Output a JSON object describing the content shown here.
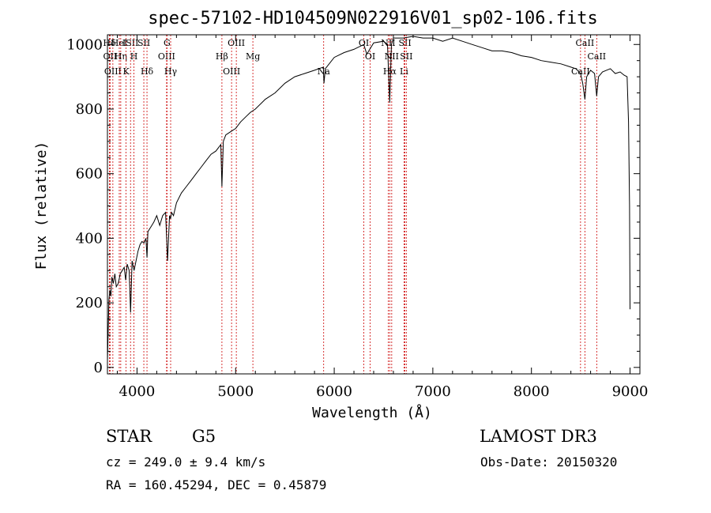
{
  "chart_data": {
    "type": "line",
    "title": "spec-57102-HD104509N022916V01_sp02-106.fits",
    "xlabel": "Wavelength (Å)",
    "ylabel": "Flux (relative)",
    "xlim": [
      3700,
      9100
    ],
    "ylim": [
      -20,
      1030
    ],
    "xticks": [
      4000,
      5000,
      6000,
      7000,
      8000,
      9000
    ],
    "yticks": [
      0,
      200,
      400,
      600,
      800,
      1000
    ],
    "grid": false,
    "series": [
      {
        "x": [
          3700,
          3705,
          3715,
          3725,
          3735,
          3745,
          3760,
          3775,
          3790,
          3810,
          3830,
          3850,
          3870,
          3885,
          3900,
          3920,
          3935,
          3950,
          3970,
          3990,
          4010,
          4030,
          4050,
          4070,
          4090,
          4101,
          4110,
          4130,
          4150,
          4170,
          4200,
          4230,
          4260,
          4290,
          4310,
          4330,
          4340,
          4350,
          4370,
          4400,
          4450,
          4500,
          4550,
          4600,
          4650,
          4700,
          4750,
          4800,
          4850,
          4861,
          4875,
          4900,
          4950,
          5000,
          5050,
          5100,
          5150,
          5200,
          5300,
          5400,
          5500,
          5600,
          5700,
          5800,
          5890,
          5896,
          5910,
          6000,
          6100,
          6200,
          6300,
          6330,
          6400,
          6500,
          6540,
          6563,
          6580,
          6600,
          6700,
          6800,
          6900,
          7000,
          7100,
          7200,
          7300,
          7400,
          7500,
          7600,
          7700,
          7800,
          7900,
          8000,
          8100,
          8200,
          8300,
          8400,
          8450,
          8498,
          8520,
          8542,
          8560,
          8600,
          8640,
          8662,
          8680,
          8720,
          8760,
          8800,
          8850,
          8900,
          8940,
          8970,
          8985,
          8995,
          9000
        ],
        "values": [
          20,
          80,
          210,
          240,
          220,
          280,
          260,
          290,
          250,
          260,
          290,
          300,
          310,
          270,
          320,
          300,
          170,
          330,
          300,
          330,
          360,
          380,
          390,
          385,
          400,
          340,
          420,
          430,
          440,
          450,
          470,
          440,
          470,
          480,
          330,
          470,
          460,
          480,
          470,
          510,
          540,
          560,
          580,
          600,
          620,
          640,
          660,
          670,
          690,
          560,
          700,
          720,
          730,
          740,
          760,
          775,
          790,
          800,
          830,
          850,
          880,
          900,
          910,
          920,
          930,
          880,
          925,
          960,
          975,
          985,
          1000,
          970,
          1005,
          1010,
          1000,
          820,
          1000,
          1020,
          1020,
          1025,
          1020,
          1020,
          1010,
          1020,
          1010,
          1000,
          990,
          980,
          980,
          975,
          965,
          960,
          950,
          945,
          940,
          930,
          925,
          910,
          880,
          830,
          900,
          920,
          910,
          840,
          900,
          915,
          920,
          925,
          910,
          915,
          905,
          900,
          760,
          500,
          180
        ]
      }
    ],
    "line_markers": [
      {
        "label": "Hδ",
        "x": 3720
      },
      {
        "label": "OII",
        "x": 3727
      },
      {
        "label": "OIII",
        "x": 3755
      },
      {
        "label": "HeI",
        "x": 3820
      },
      {
        "label": "Hη",
        "x": 3835
      },
      {
        "label": "K",
        "x": 3889
      },
      {
        "label": "ISII",
        "x": 3934
      },
      {
        "label": "H",
        "x": 3969
      },
      {
        "label": "Hδ",
        "x": 4101
      },
      {
        "label": "SII",
        "x": 4069
      },
      {
        "label": "OIII",
        "x": 4300
      },
      {
        "label": "Hγ",
        "x": 4341
      },
      {
        "label": "G",
        "x": 4304
      },
      {
        "label": "Hβ",
        "x": 4861
      },
      {
        "label": "OIII",
        "x": 4959
      },
      {
        "label": "OIII",
        "x": 5007
      },
      {
        "label": "Mg",
        "x": 5175
      },
      {
        "label": "Na",
        "x": 5893
      },
      {
        "label": "OI",
        "x": 6300
      },
      {
        "label": "OI",
        "x": 6364
      },
      {
        "label": "Hα",
        "x": 6563
      },
      {
        "label": "NII",
        "x": 6548
      },
      {
        "label": "NII",
        "x": 6583
      },
      {
        "label": "Li",
        "x": 6708
      },
      {
        "label": "SII",
        "x": 6717
      },
      {
        "label": "SII",
        "x": 6731
      },
      {
        "label": "CaII",
        "x": 8498
      },
      {
        "label": "CaII",
        "x": 8542
      },
      {
        "label": "CaII",
        "x": 8662
      }
    ]
  },
  "info": {
    "object_class": "STAR",
    "subclass": "G5",
    "survey": "LAMOST DR3",
    "redshift": "cz = 249.0 ± 9.4 km/s",
    "obs_date": "Obs-Date: 20150320",
    "coords": "RA = 160.45294, DEC =   0.45879"
  },
  "colors": {
    "spectrum": "#000000",
    "marker_line": "#cc0000",
    "axis": "#000000"
  }
}
